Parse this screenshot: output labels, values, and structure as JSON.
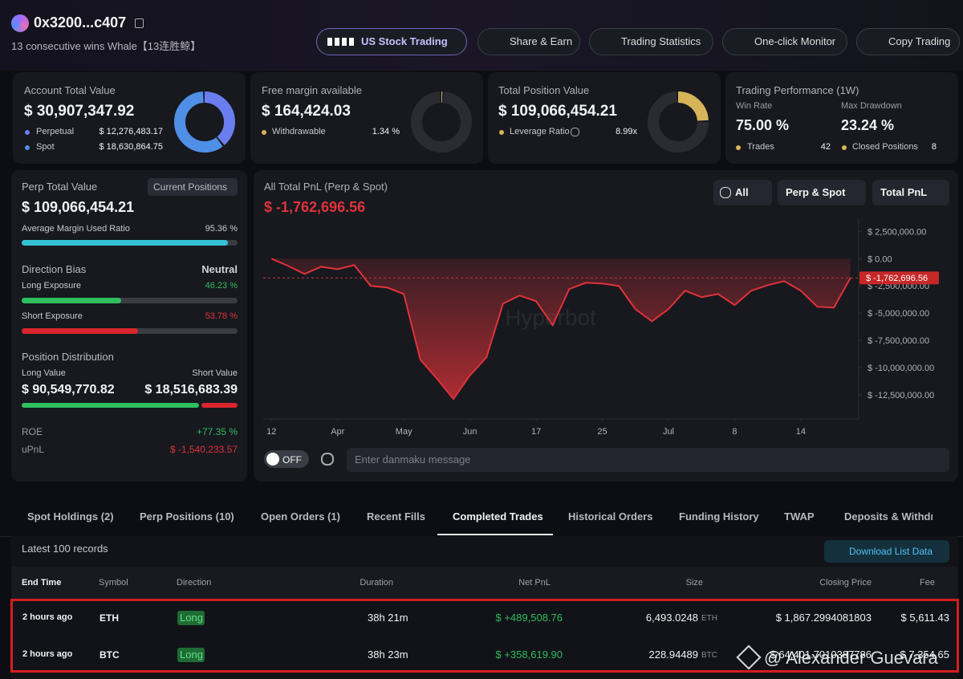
{
  "header": {
    "address": "0x3200...c407",
    "subtitle": "13 consecutive wins Whale【13连胜鲸】",
    "buttons": [
      "US Stock Trading",
      "Share & Earn",
      "Trading Statistics",
      "One-click Monitor",
      "Copy Trading"
    ]
  },
  "summary": {
    "account": {
      "label": "Account Total Value",
      "value": "$ 30,907,347.92",
      "rows": [
        {
          "name": "Perpetual",
          "value": 12276483.17,
          "label": "$ 12,276,483.17"
        },
        {
          "name": "Spot",
          "value": 18630864.75,
          "label": "$ 18,630,864.75"
        }
      ]
    },
    "free_margin": {
      "label": "Free margin available",
      "value": "$ 164,424.03",
      "row": {
        "name": "Withdrawable",
        "value": 1.34,
        "label": "1.34 %"
      }
    },
    "position": {
      "label": "Total Position Value",
      "value": "$ 109,066,454.21",
      "row": {
        "name": "Leverage Ratio",
        "value": "8.99x"
      }
    },
    "performance": {
      "label": "Trading Performance (1W)",
      "win_rate_label": "Win Rate",
      "win_rate": "75.00 %",
      "drawdown_label": "Max Drawdown",
      "drawdown": "23.24 %",
      "trades_label": "Trades",
      "trades": 42,
      "closed_label": "Closed Positions",
      "closed": 8
    }
  },
  "perp": {
    "label": "Perp Total Value",
    "button": "Current Positions",
    "value": "$ 109,066,454.21",
    "margin": {
      "name": "Average Margin Used Ratio",
      "value": 95.36,
      "label": "95.36 %"
    },
    "bias_label": "Direction Bias",
    "bias": "Neutral",
    "long": {
      "name": "Long Exposure",
      "value": 46.23,
      "label": "46.23 %"
    },
    "short": {
      "name": "Short Exposure",
      "value": 53.78,
      "label": "53.78 %"
    },
    "distribution_label": "Position Distribution",
    "long_value": {
      "name": "Long Value",
      "value": 90549770.82,
      "label": "$ 90,549,770.82"
    },
    "short_value": {
      "name": "Short Value",
      "value": 18516683.39,
      "label": "$ 18,516,683.39"
    },
    "roe_label": "ROE",
    "roe": "+77.35 %",
    "upnl_label": "uPnL",
    "upnl": "$ -1,540,233.57"
  },
  "chart_data": {
    "type": "area",
    "title": "All Total PnL (Perp & Spot)",
    "subtitle": "$ -1,762,696.56",
    "filters": [
      "All",
      "Perp & Spot",
      "Total PnL"
    ],
    "watermark": "Hyperbot",
    "color": "#e0323a",
    "values": [
      0,
      -660000,
      -1400000,
      -740000,
      -960000,
      -590000,
      -2500000,
      -2650000,
      -3240000,
      -9260000,
      -11000000,
      -12870000,
      -10700000,
      -9040000,
      -4120000,
      -3380000,
      -3900000,
      -6100000,
      -2790000,
      -2210000,
      -2280000,
      -2500000,
      -4630000,
      -5740000,
      -4630000,
      -2940000,
      -3530000,
      -3240000,
      -4260000,
      -2940000,
      -2430000,
      -2060000,
      -2940000,
      -4410000,
      -4490000,
      -1762696.56
    ],
    "xlim": [
      -0.5,
      35.5
    ],
    "xticks": [
      {
        "value": 0,
        "label": "12"
      },
      {
        "value": 4,
        "label": "Apr"
      },
      {
        "value": 8,
        "label": "May"
      },
      {
        "value": 12,
        "label": "Jun"
      },
      {
        "value": 16,
        "label": "17"
      },
      {
        "value": 20,
        "label": "25"
      },
      {
        "value": 24,
        "label": "Jul"
      },
      {
        "value": 28,
        "label": "8"
      },
      {
        "value": 32,
        "label": "14"
      }
    ],
    "ylim": [
      -14700000,
      3700000
    ],
    "yticks": [
      {
        "value": 2500000,
        "label": "$ 2,500,000.00"
      },
      {
        "value": 0,
        "label": "$ 0.00"
      },
      {
        "value": -2500000,
        "label": "$ -2,500,000.00"
      },
      {
        "value": -5000000,
        "label": "$ -5,000,000.00"
      },
      {
        "value": -7500000,
        "label": "$ -7,500,000.00"
      },
      {
        "value": -10000000,
        "label": "$ -10,000,000.00"
      },
      {
        "value": -12500000,
        "label": "$ -12,500,000.00"
      }
    ],
    "current": {
      "value": -1762696.56,
      "label": "$ -1,762,696.56"
    }
  },
  "danmaku": {
    "toggle": "OFF",
    "placeholder": "Enter danmaku message"
  },
  "table": {
    "tabs": [
      "Spot Holdings (2)",
      "Perp Positions (10)",
      "Open Orders (1)",
      "Recent Fills",
      "Completed Trades",
      "Historical Orders",
      "Funding History",
      "TWAP",
      "Deposits & Withdrawals"
    ],
    "active_tab": 4,
    "records": "Latest 100 records",
    "download": "Download List Data",
    "columns": [
      "End Time",
      "Symbol",
      "Direction",
      "Duration",
      "Net PnL",
      "Size",
      "Closing Price",
      "Fee"
    ],
    "rows": [
      {
        "end_time": "2 hours ago",
        "symbol": "ETH",
        "direction": "Long",
        "duration": "38h 21m",
        "net_pnl": "$ +489,508.76",
        "size": "6,493.0248",
        "size_unit": "ETH",
        "closing_price": "$ 1,867.2994081803",
        "fee": "$ 5,611.43"
      },
      {
        "end_time": "2 hours ago",
        "symbol": "BTC",
        "direction": "Long",
        "duration": "38h 23m",
        "net_pnl": "$ +358,619.90",
        "size": "228.94489",
        "size_unit": "BTC",
        "closing_price": "$ 64,401.7010387786",
        "fee": "$ 7,354.65"
      }
    ]
  },
  "watermark": "@ Alexander Guevara"
}
